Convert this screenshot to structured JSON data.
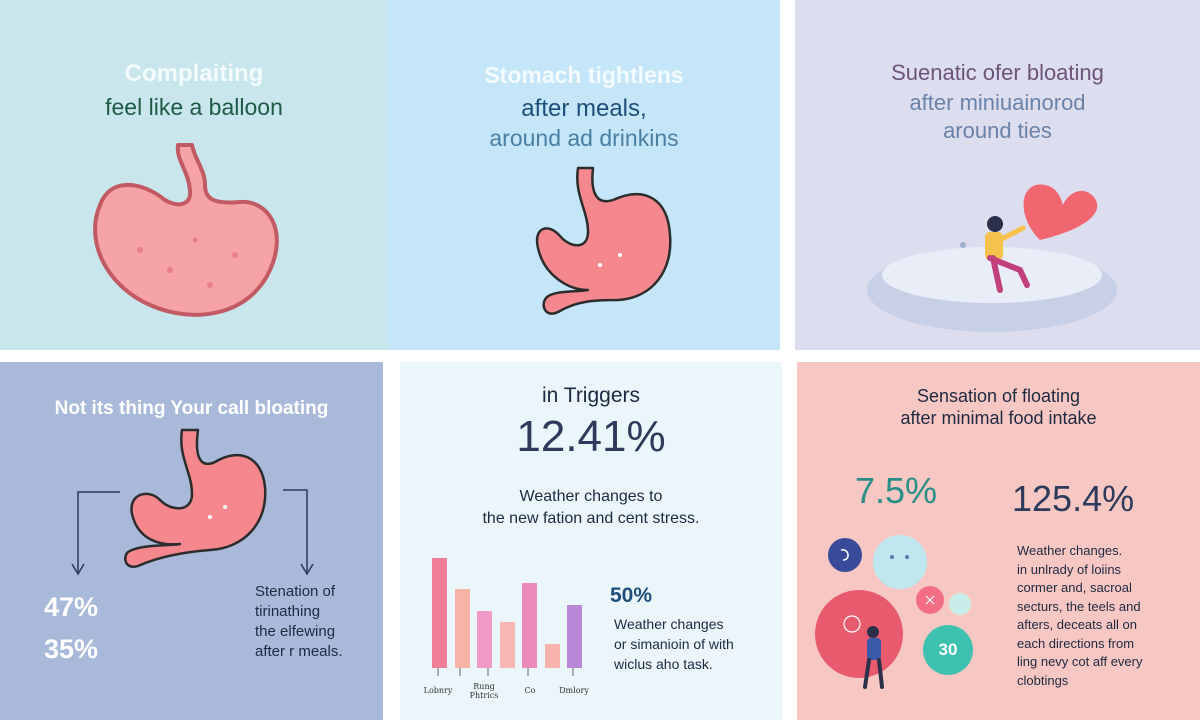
{
  "panels": {
    "p1": {
      "title": "Complaiting",
      "subtitle": "feel like a balloon"
    },
    "p2": {
      "line1": "Stomach tightlens",
      "line2": "after meals,",
      "line3": "around ad  drinkins"
    },
    "p3": {
      "line1": "Suenatic ofer bloating",
      "line2": "after  miniuainorod",
      "line3": "around ties"
    },
    "p4": {
      "title": "Not its thing Your call bloating",
      "stat1": "47%",
      "stat2": "35%",
      "note_lines": [
        "Stenation of",
        "tirinathing",
        "the elfewing",
        "after r meals."
      ]
    },
    "p5": {
      "title": "in Triggers",
      "big_stat": "12.41%",
      "desc1": "Weather changes to",
      "desc2": "the new fation and cent stress.",
      "small_stat": "50%",
      "small_desc1": "Weather changes",
      "small_desc2": "or simanioin of with",
      "small_desc3": "wiclus aho task.",
      "bar_labels": [
        "Lobnry",
        "Rung Phtrics",
        "Co",
        "Dmlory"
      ]
    },
    "p6": {
      "title1": "Sensation of floating",
      "title2": "after minimal food intake",
      "stat1": "7.5%",
      "stat2": "125.4%",
      "bubble_text": "30",
      "desc_lines": [
        "Weather changes.",
        "in unlrady of loiins",
        "cormer and, sacroal",
        "secturs, the teels and",
        "afters, deceats all on",
        "each directions from",
        "ling nevy cot aff every",
        "clobtings"
      ]
    }
  },
  "chart_data": {
    "type": "bar",
    "title": "",
    "categories": [
      "Lobnry",
      "",
      "Rung Phtrics",
      "",
      "Co",
      "",
      "Dmlory"
    ],
    "values": [
      100,
      72,
      52,
      42,
      77,
      22,
      57
    ],
    "colors": [
      "#ee7f96",
      "#f6b3a8",
      "#f19ac7",
      "#f8b7b2",
      "#ee8aba",
      "#f7b3ac",
      "#b887d7"
    ],
    "ylim": [
      0,
      100
    ],
    "xlabel": "",
    "ylabel": ""
  },
  "colors": {
    "stomach_fill": "#f4888e",
    "stomach_stroke": "#2c2c2c",
    "p1_title": "#f4fbfc",
    "p1_subtitle": "#1f5a46",
    "p2_line1": "#f4fbff",
    "p2_line2": "#1e4e7a",
    "p2_line3": "#4a7fa3",
    "p3_line1": "#6d5479",
    "p3_line2": "#6a82a8",
    "dark_navy": "#2d3a5b",
    "teal": "#2a8f87"
  }
}
